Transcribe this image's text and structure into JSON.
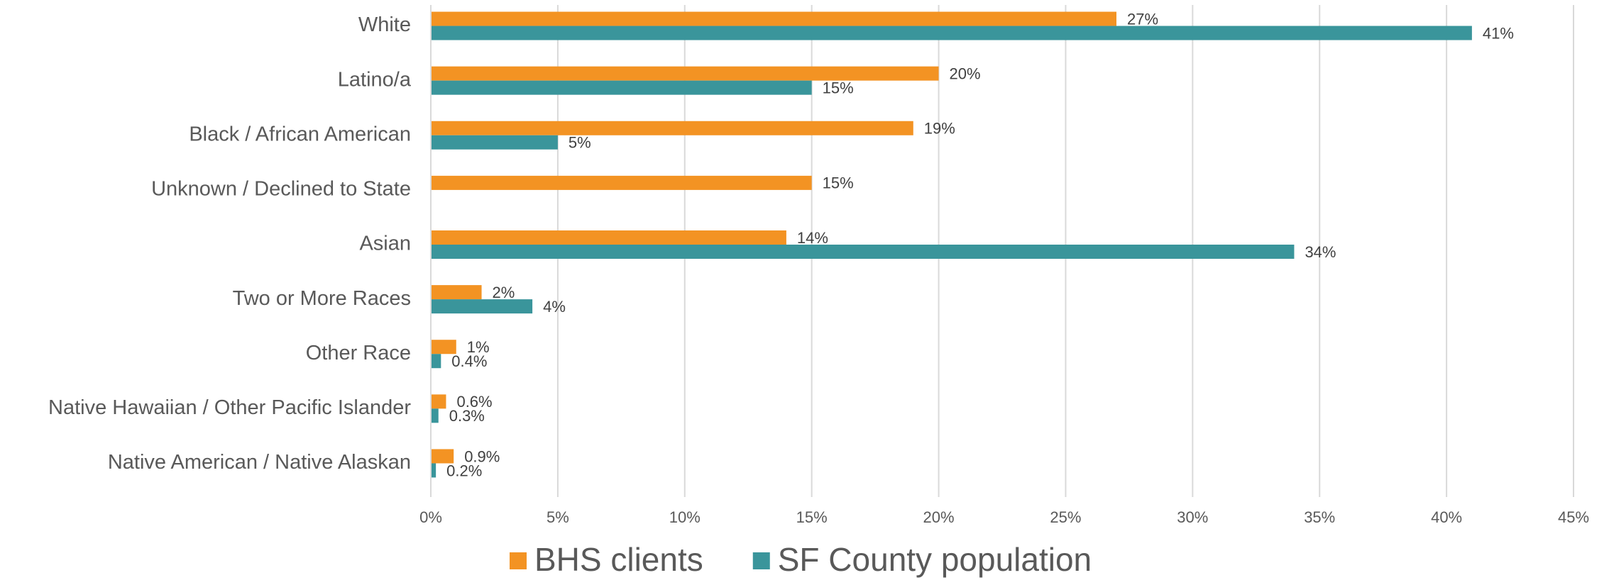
{
  "chart_data": {
    "type": "bar",
    "orientation": "horizontal",
    "categories": [
      "White",
      "Latino/a",
      "Black / African American",
      "Unknown / Declined to State",
      "Asian",
      "Two or More Races",
      "Other Race",
      "Native Hawaiian / Other Pacific Islander",
      "Native American / Native Alaskan"
    ],
    "series": [
      {
        "name": "BHS clients",
        "color": "#f39323",
        "values": [
          27,
          20,
          19,
          15,
          14,
          2,
          1,
          0.6,
          0.9
        ],
        "value_labels": [
          "27%",
          "20%",
          "19%",
          "15%",
          "14%",
          "2%",
          "1%",
          "0.6%",
          "0.9%"
        ]
      },
      {
        "name": "SF County population",
        "color": "#3a959b",
        "values": [
          41,
          15,
          5,
          null,
          34,
          4,
          0.4,
          0.3,
          0.2
        ],
        "value_labels": [
          "41%",
          "15%",
          "5%",
          null,
          "34%",
          "4%",
          "0.4%",
          "0.3%",
          "0.2%"
        ]
      }
    ],
    "xlim": [
      0,
      45
    ],
    "xticks": [
      {
        "value": 0,
        "label": "0%"
      },
      {
        "value": 5,
        "label": "5%"
      },
      {
        "value": 10,
        "label": "10%"
      },
      {
        "value": 15,
        "label": "15%"
      },
      {
        "value": 20,
        "label": "20%"
      },
      {
        "value": 25,
        "label": "25%"
      },
      {
        "value": 30,
        "label": "30%"
      },
      {
        "value": 35,
        "label": "35%"
      },
      {
        "value": 40,
        "label": "40%"
      },
      {
        "value": 45,
        "label": "45%"
      }
    ],
    "grid": true,
    "legend": "bottom"
  }
}
